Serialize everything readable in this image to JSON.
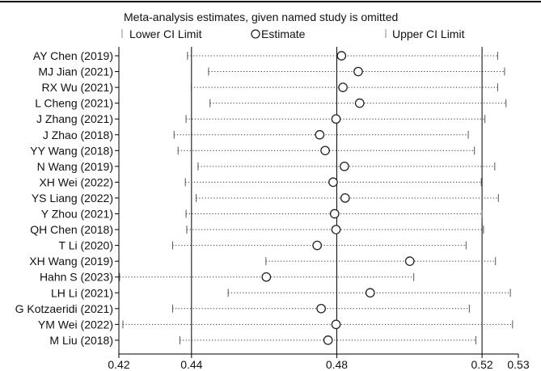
{
  "chart_data": {
    "type": "forest",
    "title": "Meta-analysis estimates, given named study is omitted",
    "legend": {
      "lower": "Lower CI Limit",
      "estimate": "Estimate",
      "upper": "Upper CI Limit"
    },
    "xlim": [
      0.42,
      0.53
    ],
    "reference_lines": [
      0.44,
      0.48,
      0.52
    ],
    "x_ticks": [
      {
        "value": 0.42,
        "label": "0.42"
      },
      {
        "value": 0.44,
        "label": "0.44"
      },
      {
        "value": 0.48,
        "label": "0.48"
      },
      {
        "value": 0.52,
        "label": "0.52"
      },
      {
        "value": 0.53,
        "label": "0.53"
      }
    ],
    "studies": [
      {
        "name": "AY Chen (2019)",
        "lower": 0.4389,
        "estimate": 0.4813,
        "upper": 0.5243
      },
      {
        "name": "MJ Jian (2021)",
        "lower": 0.4447,
        "estimate": 0.4859,
        "upper": 0.5262
      },
      {
        "name": "RX Wu (2021)",
        "lower": 0.4399,
        "estimate": 0.4817,
        "upper": 0.5243
      },
      {
        "name": "L Cheng (2021)",
        "lower": 0.4451,
        "estimate": 0.4863,
        "upper": 0.5266
      },
      {
        "name": "J Zhang (2021)",
        "lower": 0.4385,
        "estimate": 0.4798,
        "upper": 0.5208
      },
      {
        "name": "J Zhao (2018)",
        "lower": 0.4352,
        "estimate": 0.4753,
        "upper": 0.5162
      },
      {
        "name": "YY Wang (2018)",
        "lower": 0.4363,
        "estimate": 0.4768,
        "upper": 0.5179
      },
      {
        "name": "N Wang (2019)",
        "lower": 0.4418,
        "estimate": 0.4821,
        "upper": 0.5235
      },
      {
        "name": "XH Wei (2022)",
        "lower": 0.4383,
        "estimate": 0.479,
        "upper": 0.5198
      },
      {
        "name": "YS Liang (2022)",
        "lower": 0.4413,
        "estimate": 0.4823,
        "upper": 0.5245
      },
      {
        "name": "Y Zhou (2021)",
        "lower": 0.4385,
        "estimate": 0.4794,
        "upper": 0.52
      },
      {
        "name": "QH Chen (2018)",
        "lower": 0.4387,
        "estimate": 0.4798,
        "upper": 0.5204
      },
      {
        "name": "T Li (2020)",
        "lower": 0.4348,
        "estimate": 0.4746,
        "upper": 0.5156
      },
      {
        "name": "XH Wang (2019)",
        "lower": 0.4605,
        "estimate": 0.5001,
        "upper": 0.5237
      },
      {
        "name": "Hahn S (2023)",
        "lower": 0.4202,
        "estimate": 0.4606,
        "upper": 0.5012
      },
      {
        "name": "LH Li (2021)",
        "lower": 0.4501,
        "estimate": 0.4892,
        "upper": 0.5278
      },
      {
        "name": "G Kotzaeridi (2021)",
        "lower": 0.4348,
        "estimate": 0.4757,
        "upper": 0.5165
      },
      {
        "name": "YM Wei (2022)",
        "lower": 0.4211,
        "estimate": 0.4798,
        "upper": 0.5284
      },
      {
        "name": "M Liu (2018)",
        "lower": 0.4368,
        "estimate": 0.4776,
        "upper": 0.5183
      }
    ]
  }
}
